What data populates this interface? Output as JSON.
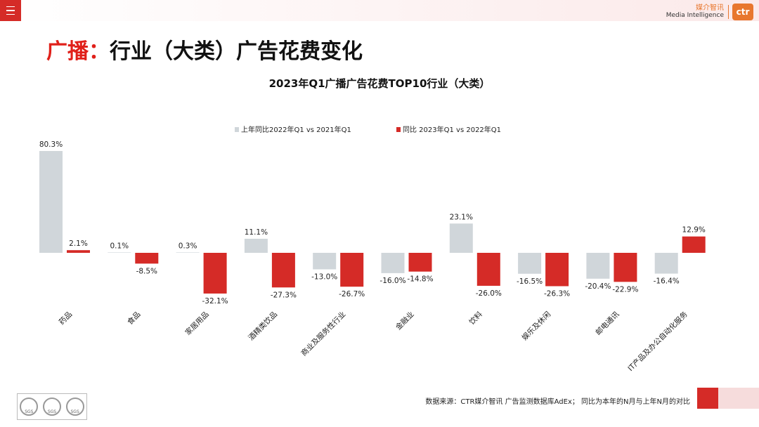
{
  "header": {
    "menu_icon": "hamburger-icon",
    "brand_cn": "媒介智讯",
    "brand_en": "Media Intelligence",
    "brand_logo": "ctr"
  },
  "page": {
    "title_accent": "广播：",
    "title_rest": "行业（大类）广告花费变化"
  },
  "chart_data": {
    "type": "bar",
    "title": "2023年Q1广播广告花费TOP10行业（大类）",
    "categories": [
      "药品",
      "食品",
      "家居用品",
      "酒精类饮品",
      "商业及服务性行业",
      "金融业",
      "饮料",
      "娱乐及休闲",
      "邮电通讯",
      "IT产品及办公自动化服务"
    ],
    "series": [
      {
        "name": "上年同比2022年Q1  vs 2021年Q1",
        "color": "#d0d6da",
        "values": [
          80.3,
          0.1,
          0.3,
          11.1,
          -13.0,
          -16.0,
          23.1,
          -16.5,
          -20.4,
          -16.4
        ]
      },
      {
        "name": "同比 2023年Q1  vs 2022年Q1",
        "color": "#d52b27",
        "values": [
          2.1,
          -8.5,
          -32.1,
          -27.3,
          -26.7,
          -14.8,
          -26.0,
          -26.3,
          -22.9,
          12.9
        ]
      }
    ],
    "value_suffix": "%",
    "legend_position": "top-center",
    "grid": false
  },
  "footer": {
    "source": "数据来源：CTR媒介智讯 广告监测数据库AdEx；  同比为本年的N月与上年N月的对比",
    "badge_label": "SGS"
  },
  "colors": {
    "accent": "#d52b27",
    "brand": "#e8772e"
  }
}
